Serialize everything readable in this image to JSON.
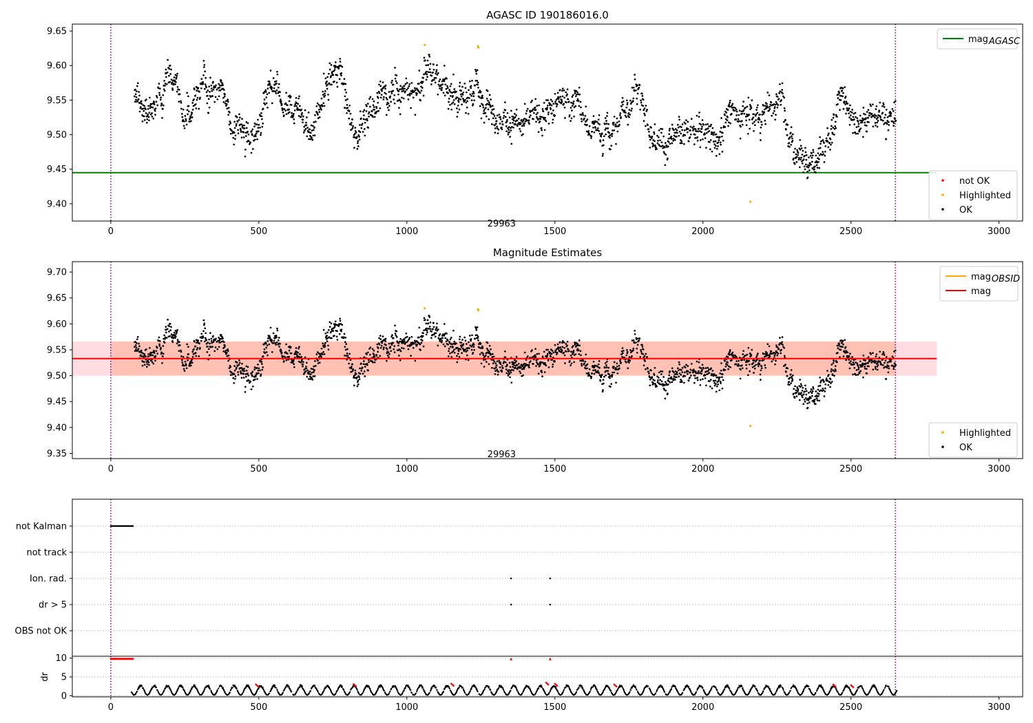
{
  "chart_data": [
    {
      "type": "scatter",
      "title": "AGASC ID 190186016.0",
      "xlim": [
        -130,
        3080
      ],
      "ylim": [
        9.375,
        9.66
      ],
      "xticks": [
        0,
        500,
        1000,
        1500,
        2000,
        2500,
        3000
      ],
      "yticks": [
        9.4,
        9.45,
        9.5,
        9.55,
        9.6,
        9.65
      ],
      "grid": false,
      "legend_upper": {
        "placement": "top-right",
        "entries": [
          {
            "label": "mag",
            "sub": "AGASC",
            "color": "#008000"
          }
        ]
      },
      "legend_lower": {
        "placement": "bottom-right",
        "entries": [
          {
            "label": "not OK",
            "color": "#ff0000"
          },
          {
            "label": "Highlighted",
            "color": "#ffa500"
          },
          {
            "label": "OK",
            "color": "#000000"
          }
        ]
      },
      "hlines": [
        {
          "name": "mag_agasc",
          "y": 9.445,
          "x_end": 2790,
          "color": "#008000"
        }
      ],
      "vlines": [
        {
          "x": 0,
          "color": "#800080"
        },
        {
          "x": 2650,
          "color": "#800080"
        }
      ],
      "annotations": [
        {
          "text": "29963",
          "x": 1320,
          "y": 9.38
        }
      ],
      "highlighted_points": [
        {
          "x": 1060,
          "y": 9.63
        },
        {
          "x": 1240,
          "y": 9.628
        },
        {
          "x": 1242,
          "y": 9.626
        },
        {
          "x": 2160,
          "y": 9.403
        }
      ],
      "series_profile": [
        {
          "x": 80,
          "y": 9.56
        },
        {
          "x": 120,
          "y": 9.535
        },
        {
          "x": 150,
          "y": 9.545
        },
        {
          "x": 190,
          "y": 9.58
        },
        {
          "x": 220,
          "y": 9.58
        },
        {
          "x": 240,
          "y": 9.52
        },
        {
          "x": 270,
          "y": 9.53
        },
        {
          "x": 300,
          "y": 9.57
        },
        {
          "x": 340,
          "y": 9.555
        },
        {
          "x": 380,
          "y": 9.56
        },
        {
          "x": 410,
          "y": 9.515
        },
        {
          "x": 440,
          "y": 9.5
        },
        {
          "x": 470,
          "y": 9.49
        },
        {
          "x": 500,
          "y": 9.52
        },
        {
          "x": 530,
          "y": 9.57
        },
        {
          "x": 550,
          "y": 9.58
        },
        {
          "x": 580,
          "y": 9.535
        },
        {
          "x": 620,
          "y": 9.525
        },
        {
          "x": 660,
          "y": 9.51
        },
        {
          "x": 700,
          "y": 9.525
        },
        {
          "x": 740,
          "y": 9.595
        },
        {
          "x": 770,
          "y": 9.58
        },
        {
          "x": 800,
          "y": 9.54
        },
        {
          "x": 830,
          "y": 9.495
        },
        {
          "x": 860,
          "y": 9.52
        },
        {
          "x": 900,
          "y": 9.555
        },
        {
          "x": 960,
          "y": 9.55
        },
        {
          "x": 1000,
          "y": 9.56
        },
        {
          "x": 1040,
          "y": 9.555
        },
        {
          "x": 1070,
          "y": 9.605
        },
        {
          "x": 1110,
          "y": 9.58
        },
        {
          "x": 1150,
          "y": 9.56
        },
        {
          "x": 1190,
          "y": 9.545
        },
        {
          "x": 1230,
          "y": 9.59
        },
        {
          "x": 1260,
          "y": 9.54
        },
        {
          "x": 1300,
          "y": 9.525
        },
        {
          "x": 1350,
          "y": 9.52
        },
        {
          "x": 1400,
          "y": 9.52
        },
        {
          "x": 1450,
          "y": 9.515
        },
        {
          "x": 1500,
          "y": 9.55
        },
        {
          "x": 1540,
          "y": 9.555
        },
        {
          "x": 1580,
          "y": 9.545
        },
        {
          "x": 1620,
          "y": 9.515
        },
        {
          "x": 1660,
          "y": 9.51
        },
        {
          "x": 1700,
          "y": 9.51
        },
        {
          "x": 1740,
          "y": 9.545
        },
        {
          "x": 1780,
          "y": 9.58
        },
        {
          "x": 1820,
          "y": 9.5
        },
        {
          "x": 1870,
          "y": 9.485
        },
        {
          "x": 1920,
          "y": 9.52
        },
        {
          "x": 1960,
          "y": 9.495
        },
        {
          "x": 2000,
          "y": 9.51
        },
        {
          "x": 2050,
          "y": 9.495
        },
        {
          "x": 2100,
          "y": 9.54
        },
        {
          "x": 2150,
          "y": 9.525
        },
        {
          "x": 2200,
          "y": 9.53
        },
        {
          "x": 2260,
          "y": 9.55
        },
        {
          "x": 2290,
          "y": 9.49
        },
        {
          "x": 2330,
          "y": 9.47
        },
        {
          "x": 2380,
          "y": 9.468
        },
        {
          "x": 2430,
          "y": 9.485
        },
        {
          "x": 2460,
          "y": 9.57
        },
        {
          "x": 2500,
          "y": 9.54
        },
        {
          "x": 2540,
          "y": 9.515
        },
        {
          "x": 2600,
          "y": 9.535
        },
        {
          "x": 2650,
          "y": 9.51
        }
      ]
    },
    {
      "type": "scatter",
      "title": "Magnitude Estimates",
      "xlim": [
        -130,
        3080
      ],
      "ylim": [
        9.34,
        9.72
      ],
      "xticks": [
        0,
        500,
        1000,
        1500,
        2000,
        2500,
        3000
      ],
      "yticks": [
        9.35,
        9.4,
        9.45,
        9.5,
        9.55,
        9.6,
        9.65,
        9.7
      ],
      "grid": false,
      "legend_upper": {
        "placement": "top-right",
        "entries": [
          {
            "label": "mag",
            "sub": "OBSID",
            "color": "#ffa500"
          },
          {
            "label": "mag",
            "color": "#ff0000"
          }
        ]
      },
      "legend_lower": {
        "placement": "bottom-right",
        "entries": [
          {
            "label": "Highlighted",
            "color": "#ffa500"
          },
          {
            "label": "OK",
            "color": "#000000"
          }
        ]
      },
      "hlines": [
        {
          "name": "mag",
          "y": 9.533,
          "x_end": 2790,
          "color": "#ff0000"
        }
      ],
      "bands": [
        {
          "name": "mag band",
          "y0": 9.5,
          "y1": 9.566,
          "x_end": 2790,
          "color": "#ffc0cb"
        },
        {
          "name": "mag_obsid band",
          "y0": 9.5,
          "y1": 9.566,
          "x0": 0,
          "x1": 2650,
          "color": "#ffa07a"
        }
      ],
      "vlines": [
        {
          "x": 0,
          "color": "#800080"
        },
        {
          "x": 2650,
          "color": "#800080"
        }
      ],
      "annotations": [
        {
          "text": "29963",
          "x": 1320,
          "y": 9.345
        }
      ],
      "highlighted_points": [
        {
          "x": 1060,
          "y": 9.63
        },
        {
          "x": 1240,
          "y": 9.628
        },
        {
          "x": 1242,
          "y": 9.626
        },
        {
          "x": 2160,
          "y": 9.403
        }
      ]
    },
    {
      "type": "scatter",
      "title": "",
      "xlim": [
        -130,
        3080
      ],
      "categories": [
        "not Kalman",
        "not track",
        "Ion. rad.",
        "dr > 5",
        "OBS not OK"
      ],
      "grid": "dotted horizontal",
      "vlines": [
        {
          "x": 0,
          "color": "#800080"
        },
        {
          "x": 2650,
          "color": "#800080"
        }
      ],
      "flag_points": [
        {
          "category": "not Kalman",
          "x_start": 0,
          "x_end": 75
        },
        {
          "category": "Ion. rad.",
          "x": 1352
        },
        {
          "category": "Ion. rad.",
          "x": 1484
        },
        {
          "category": "dr > 5",
          "x": 1352
        },
        {
          "category": "dr > 5",
          "x": 1484
        }
      ]
    },
    {
      "type": "scatter",
      "title": "",
      "xlim": [
        -130,
        3080
      ],
      "ylim": [
        -0.3,
        10.5
      ],
      "xticks": [
        0,
        500,
        1000,
        1500,
        2000,
        2500,
        3000
      ],
      "yticks": [
        0,
        5,
        10
      ],
      "ylabel": "dr",
      "grid": "dotted horizontal",
      "vlines": [
        {
          "x": 0,
          "color": "#800080"
        },
        {
          "x": 2650,
          "color": "#800080"
        }
      ],
      "red_markers": [
        {
          "x_start": 0,
          "x_end": 75,
          "y": 9.8
        },
        {
          "x": 1352,
          "y": 9.8
        },
        {
          "x": 1484,
          "y": 9.8
        }
      ],
      "red_points": [
        {
          "x": 490,
          "y": 3.0
        },
        {
          "x": 820,
          "y": 3.1
        },
        {
          "x": 1150,
          "y": 3.2
        },
        {
          "x": 1470,
          "y": 3.5
        },
        {
          "x": 1500,
          "y": 3.2
        },
        {
          "x": 1700,
          "y": 3.0
        },
        {
          "x": 2440,
          "y": 3.0
        },
        {
          "x": 2500,
          "y": 2.8
        }
      ],
      "dr_range": {
        "x_start": 70,
        "x_end": 2655,
        "min": 0.2,
        "max": 2.9
      }
    }
  ]
}
